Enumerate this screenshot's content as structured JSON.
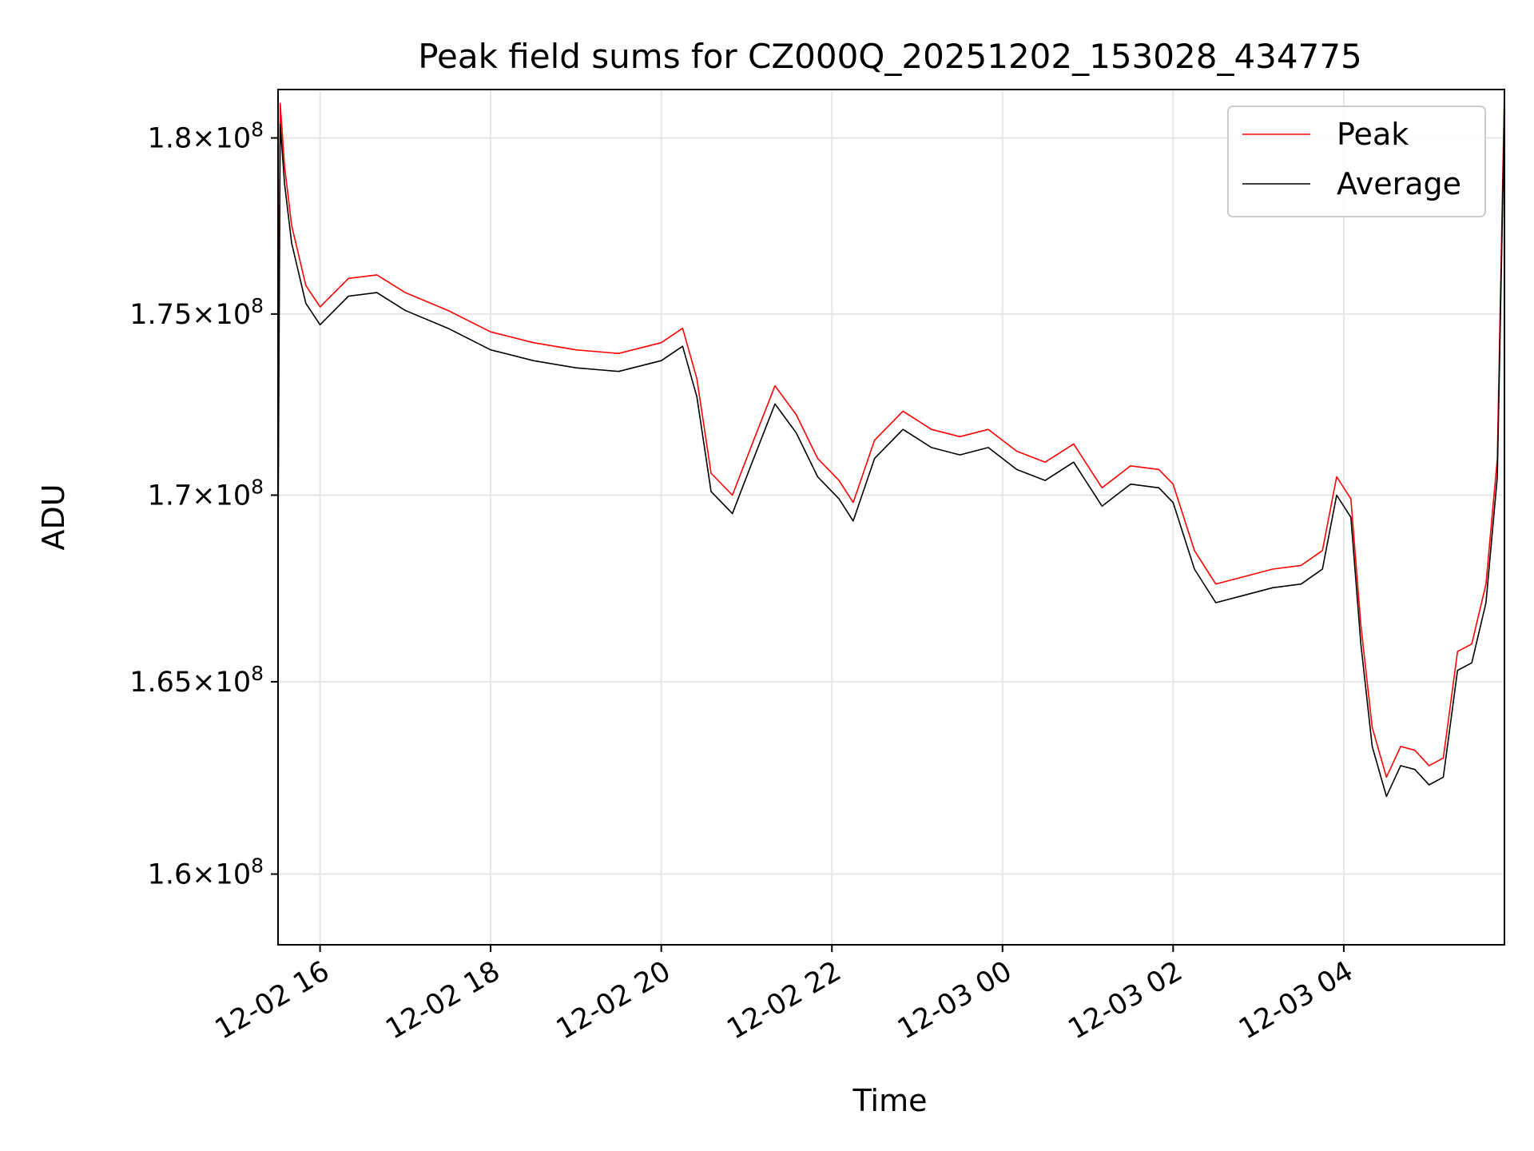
{
  "chart_data": {
    "type": "line",
    "title": "Peak field sums for CZ000Q_20251202_153028_434775",
    "xlabel": "Time",
    "ylabel": "ADU",
    "xlim": [
      "2025-12-02T15:30:28",
      "2025-12-03T05:53:00"
    ],
    "ylim": [
      158200000,
      181400000
    ],
    "y_scale": "log",
    "grid": true,
    "legend_position": "top-right",
    "x_ticks": [
      {
        "t": "2025-12-02T16:00:00",
        "label": "12-02 16"
      },
      {
        "t": "2025-12-02T18:00:00",
        "label": "12-02 18"
      },
      {
        "t": "2025-12-02T20:00:00",
        "label": "12-02 20"
      },
      {
        "t": "2025-12-02T22:00:00",
        "label": "12-02 22"
      },
      {
        "t": "2025-12-03T00:00:00",
        "label": "12-03 00"
      },
      {
        "t": "2025-12-03T02:00:00",
        "label": "12-03 02"
      },
      {
        "t": "2025-12-03T04:00:00",
        "label": "12-03 04"
      }
    ],
    "y_ticks": [
      {
        "value": 160000000,
        "mantissa": "1.6",
        "exponent": "8"
      },
      {
        "value": 165000000,
        "mantissa": "1.65",
        "exponent": "8"
      },
      {
        "value": 170000000,
        "mantissa": "1.7",
        "exponent": "8"
      },
      {
        "value": 175000000,
        "mantissa": "1.75",
        "exponent": "8"
      },
      {
        "value": 180000000,
        "mantissa": "1.8",
        "exponent": "8"
      }
    ],
    "series": [
      {
        "name": "Peak",
        "color": "#ff0000",
        "x": [
          "2025-12-02T15:30:28",
          "2025-12-02T15:32:00",
          "2025-12-02T15:35:00",
          "2025-12-02T15:40:00",
          "2025-12-02T15:50:00",
          "2025-12-02T16:00:00",
          "2025-12-02T16:20:00",
          "2025-12-02T16:40:00",
          "2025-12-02T17:00:00",
          "2025-12-02T17:30:00",
          "2025-12-02T18:00:00",
          "2025-12-02T18:30:00",
          "2025-12-02T19:00:00",
          "2025-12-02T19:30:00",
          "2025-12-02T20:00:00",
          "2025-12-02T20:15:00",
          "2025-12-02T20:25:00",
          "2025-12-02T20:35:00",
          "2025-12-02T20:50:00",
          "2025-12-02T21:05:00",
          "2025-12-02T21:20:00",
          "2025-12-02T21:35:00",
          "2025-12-02T21:50:00",
          "2025-12-02T22:05:00",
          "2025-12-02T22:15:00",
          "2025-12-02T22:30:00",
          "2025-12-02T22:50:00",
          "2025-12-02T23:10:00",
          "2025-12-02T23:30:00",
          "2025-12-02T23:50:00",
          "2025-12-03T00:10:00",
          "2025-12-03T00:30:00",
          "2025-12-03T00:50:00",
          "2025-12-03T01:10:00",
          "2025-12-03T01:30:00",
          "2025-12-03T01:50:00",
          "2025-12-03T02:00:00",
          "2025-12-03T02:15:00",
          "2025-12-03T02:30:00",
          "2025-12-03T02:50:00",
          "2025-12-03T03:10:00",
          "2025-12-03T03:30:00",
          "2025-12-03T03:45:00",
          "2025-12-03T03:55:00",
          "2025-12-03T04:05:00",
          "2025-12-03T04:12:00",
          "2025-12-03T04:20:00",
          "2025-12-03T04:30:00",
          "2025-12-03T04:40:00",
          "2025-12-03T04:50:00",
          "2025-12-03T05:00:00",
          "2025-12-03T05:10:00",
          "2025-12-03T05:20:00",
          "2025-12-03T05:30:00",
          "2025-12-03T05:40:00",
          "2025-12-03T05:48:00",
          "2025-12-03T05:53:00"
        ],
        "values": [
          169500000,
          181000000,
          179200000,
          177500000,
          175800000,
          175200000,
          176000000,
          176100000,
          175600000,
          175100000,
          174500000,
          174200000,
          174000000,
          173900000,
          174200000,
          174600000,
          173200000,
          170600000,
          170000000,
          171500000,
          173000000,
          172200000,
          171000000,
          170400000,
          169800000,
          171500000,
          172300000,
          171800000,
          171600000,
          171800000,
          171200000,
          170900000,
          171400000,
          170200000,
          170800000,
          170700000,
          170300000,
          168500000,
          167600000,
          167800000,
          168000000,
          168100000,
          168500000,
          170500000,
          169900000,
          166500000,
          163800000,
          162500000,
          163300000,
          163200000,
          162800000,
          163000000,
          165800000,
          166000000,
          167600000,
          171000000,
          181400000
        ]
      },
      {
        "name": "Average",
        "color": "#000000",
        "x": [
          "2025-12-02T15:30:28",
          "2025-12-02T15:32:00",
          "2025-12-02T15:35:00",
          "2025-12-02T15:40:00",
          "2025-12-02T15:50:00",
          "2025-12-02T16:00:00",
          "2025-12-02T16:20:00",
          "2025-12-02T16:40:00",
          "2025-12-02T17:00:00",
          "2025-12-02T17:30:00",
          "2025-12-02T18:00:00",
          "2025-12-02T18:30:00",
          "2025-12-02T19:00:00",
          "2025-12-02T19:30:00",
          "2025-12-02T20:00:00",
          "2025-12-02T20:15:00",
          "2025-12-02T20:25:00",
          "2025-12-02T20:35:00",
          "2025-12-02T20:50:00",
          "2025-12-02T21:05:00",
          "2025-12-02T21:20:00",
          "2025-12-02T21:35:00",
          "2025-12-02T21:50:00",
          "2025-12-02T22:05:00",
          "2025-12-02T22:15:00",
          "2025-12-02T22:30:00",
          "2025-12-02T22:50:00",
          "2025-12-02T23:10:00",
          "2025-12-02T23:30:00",
          "2025-12-02T23:50:00",
          "2025-12-03T00:10:00",
          "2025-12-03T00:30:00",
          "2025-12-03T00:50:00",
          "2025-12-03T01:10:00",
          "2025-12-03T01:30:00",
          "2025-12-03T01:50:00",
          "2025-12-03T02:00:00",
          "2025-12-03T02:15:00",
          "2025-12-03T02:30:00",
          "2025-12-03T02:50:00",
          "2025-12-03T03:10:00",
          "2025-12-03T03:30:00",
          "2025-12-03T03:45:00",
          "2025-12-03T03:55:00",
          "2025-12-03T04:05:00",
          "2025-12-03T04:12:00",
          "2025-12-03T04:20:00",
          "2025-12-03T04:30:00",
          "2025-12-03T04:40:00",
          "2025-12-03T04:50:00",
          "2025-12-03T05:00:00",
          "2025-12-03T05:10:00",
          "2025-12-03T05:20:00",
          "2025-12-03T05:30:00",
          "2025-12-03T05:40:00",
          "2025-12-03T05:48:00",
          "2025-12-03T05:53:00"
        ],
        "values": [
          168800000,
          180400000,
          178700000,
          177000000,
          175300000,
          174700000,
          175500000,
          175600000,
          175100000,
          174600000,
          174000000,
          173700000,
          173500000,
          173400000,
          173700000,
          174100000,
          172700000,
          170100000,
          169500000,
          171000000,
          172500000,
          171700000,
          170500000,
          169900000,
          169300000,
          171000000,
          171800000,
          171300000,
          171100000,
          171300000,
          170700000,
          170400000,
          170900000,
          169700000,
          170300000,
          170200000,
          169800000,
          168000000,
          167100000,
          167300000,
          167500000,
          167600000,
          168000000,
          170000000,
          169400000,
          166000000,
          163300000,
          162000000,
          162800000,
          162700000,
          162300000,
          162500000,
          165300000,
          165500000,
          167100000,
          170500000,
          180800000
        ]
      }
    ]
  }
}
